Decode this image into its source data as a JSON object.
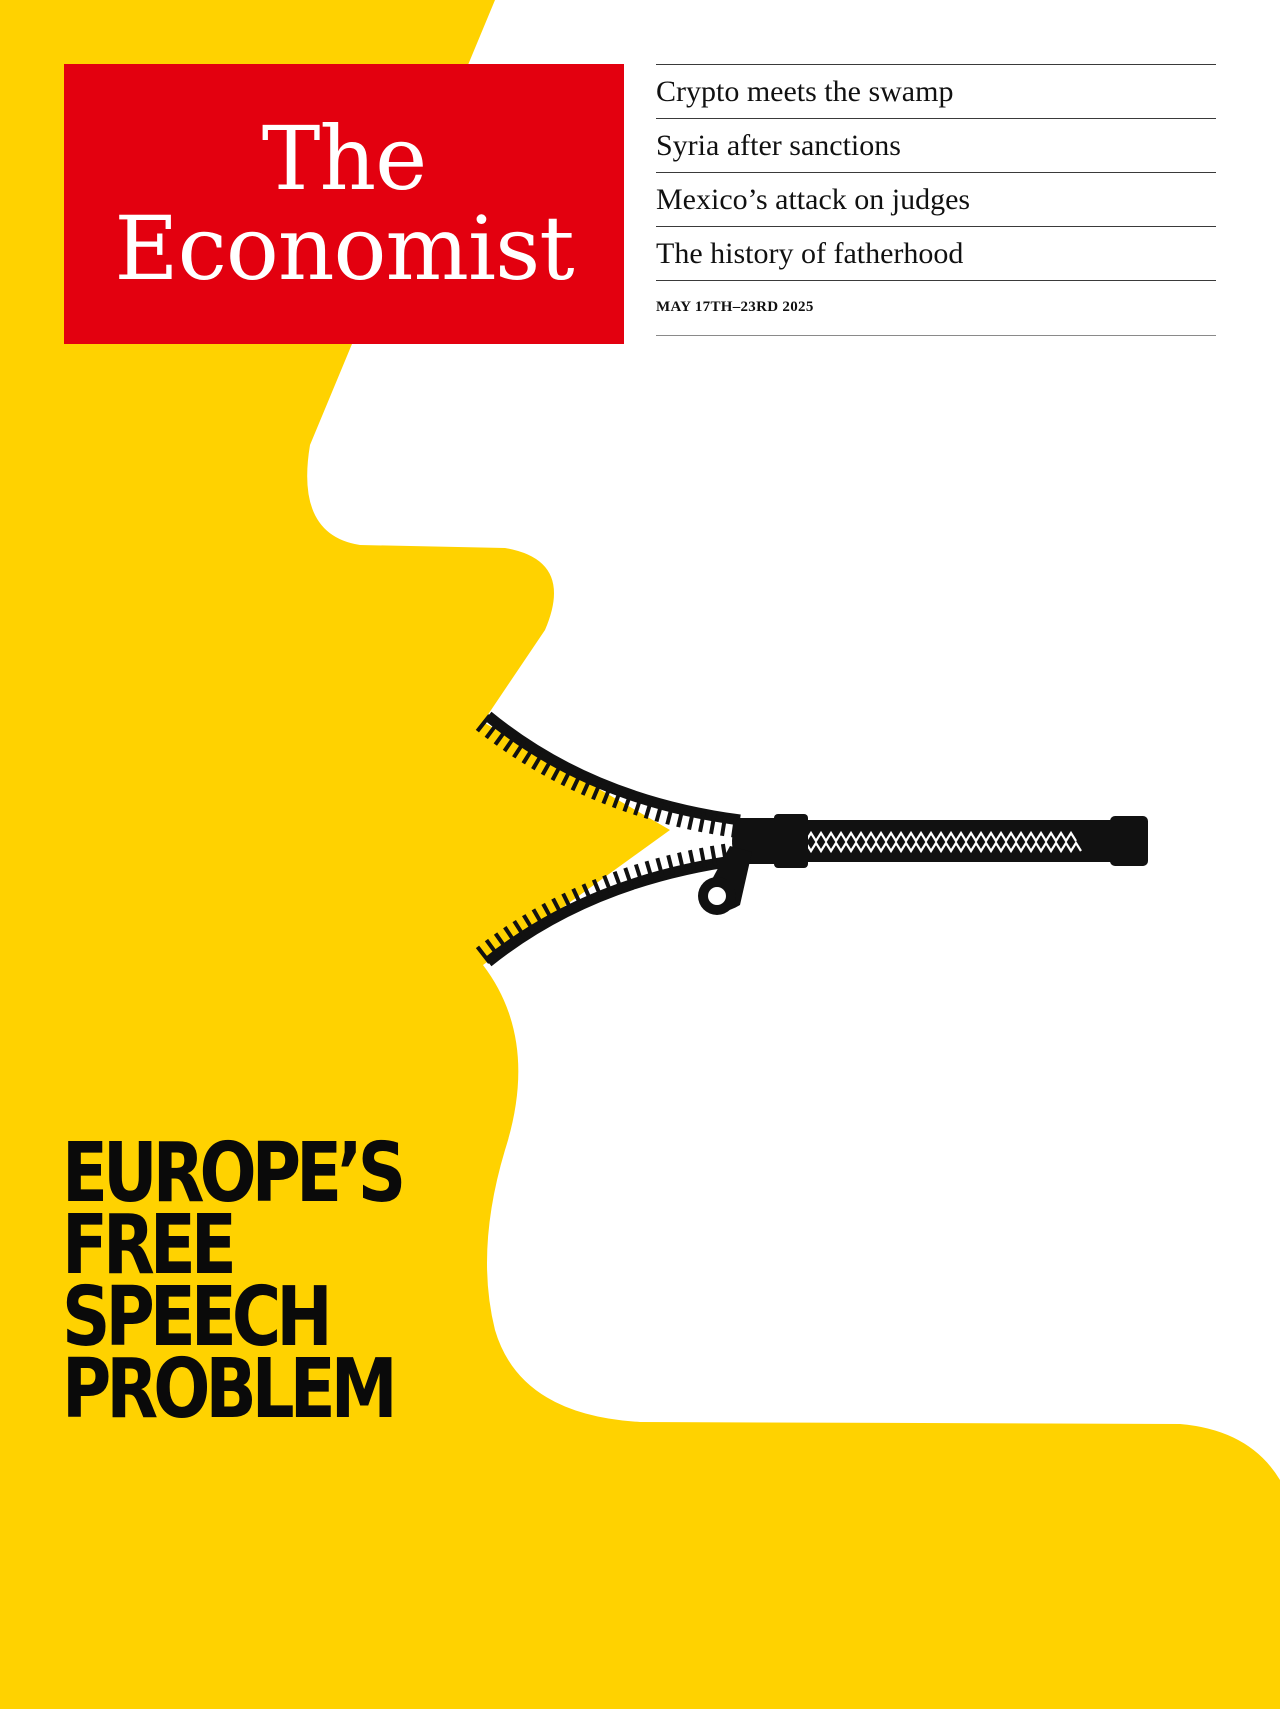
{
  "masthead": {
    "line1": "The",
    "line2": "Economist"
  },
  "headlines": [
    "Crypto meets the swamp",
    "Syria after sanctions",
    "Mexico’s attack on judges",
    "The history of fatherhood"
  ],
  "issue_date": "MAY 17TH–23RD 2025",
  "cover_story": {
    "lines": [
      "EUROPE’S",
      "FREE",
      "SPEECH",
      "PROBLEM"
    ]
  },
  "illustration": {
    "subject": "zipper-mouth-icon",
    "face_color": "#ffd200",
    "zipper_color": "#111111"
  },
  "colors": {
    "masthead_red": "#e3000f",
    "yellow": "#ffd200"
  }
}
